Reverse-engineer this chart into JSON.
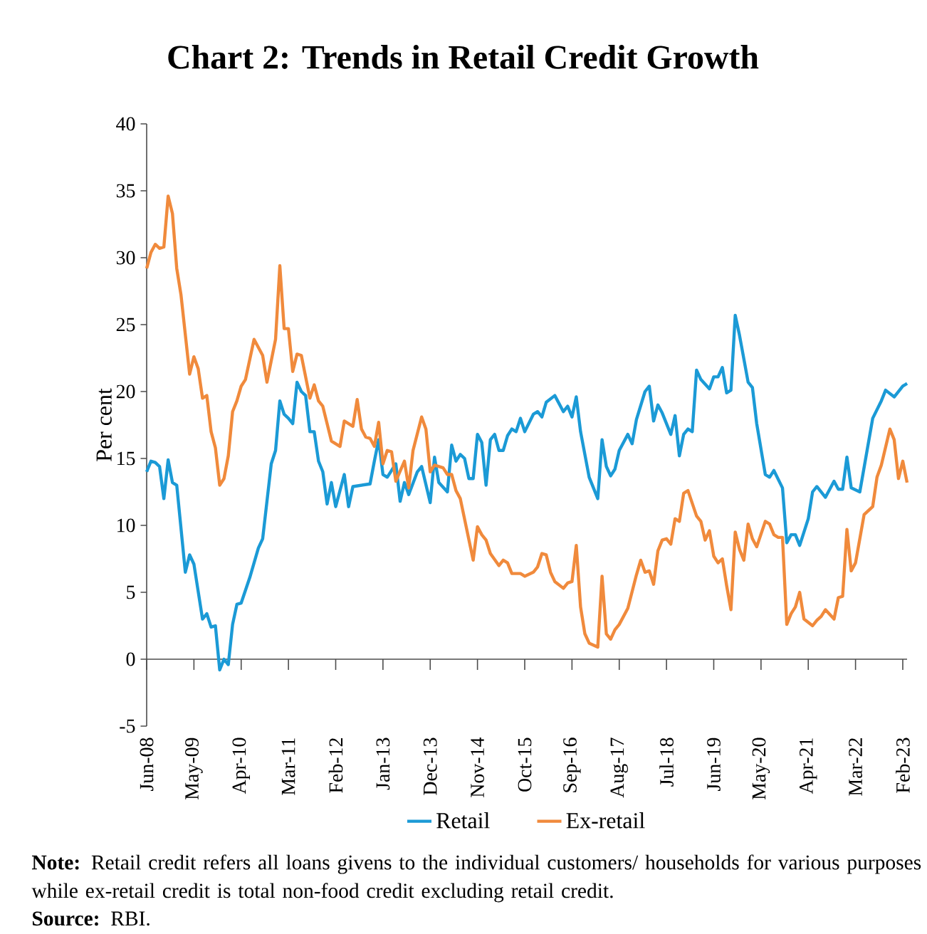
{
  "chart_data": {
    "type": "line",
    "title": "Chart 2: Trends in Retail Credit Growth",
    "ylabel": "Per cent",
    "xlim": [
      "2008-06",
      "2023-03"
    ],
    "xticks": [
      {
        "value": "2008-06",
        "label": "Jun-08"
      },
      {
        "value": "2009-05",
        "label": "May-09"
      },
      {
        "value": "2010-04",
        "label": "Apr-10"
      },
      {
        "value": "2011-03",
        "label": "Mar-11"
      },
      {
        "value": "2012-02",
        "label": "Feb-12"
      },
      {
        "value": "2013-01",
        "label": "Jan-13"
      },
      {
        "value": "2013-12",
        "label": "Dec-13"
      },
      {
        "value": "2014-11",
        "label": "Nov-14"
      },
      {
        "value": "2015-10",
        "label": "Oct-15"
      },
      {
        "value": "2016-09",
        "label": "Sep-16"
      },
      {
        "value": "2017-08",
        "label": "Aug-17"
      },
      {
        "value": "2018-07",
        "label": "Jul-18"
      },
      {
        "value": "2019-06",
        "label": "Jun-19"
      },
      {
        "value": "2020-05",
        "label": "May-20"
      },
      {
        "value": "2021-04",
        "label": "Apr-21"
      },
      {
        "value": "2022-03",
        "label": "Mar-22"
      },
      {
        "value": "2023-02",
        "label": "Feb-23"
      }
    ],
    "ylim": [
      -5,
      40
    ],
    "yticks": [
      -5,
      0,
      5,
      10,
      15,
      20,
      25,
      30,
      35,
      40
    ],
    "legend": "bottom",
    "series": [
      {
        "name": "Retail",
        "color": "#1b9ad6",
        "x": [
          "2008-06",
          "2008-07",
          "2008-08",
          "2008-09",
          "2008-10",
          "2008-11",
          "2008-12",
          "2009-01",
          "2009-03",
          "2009-04",
          "2009-05",
          "2009-07",
          "2009-08",
          "2009-09",
          "2009-10",
          "2009-11",
          "2009-12",
          "2010-01",
          "2010-02",
          "2010-03",
          "2010-04",
          "2010-06",
          "2010-08",
          "2010-09",
          "2010-11",
          "2010-12",
          "2011-01",
          "2011-02",
          "2011-03",
          "2011-04",
          "2011-05",
          "2011-06",
          "2011-07",
          "2011-08",
          "2011-09",
          "2011-10",
          "2011-11",
          "2011-12",
          "2012-01",
          "2012-02",
          "2012-04",
          "2012-05",
          "2012-06",
          "2012-10",
          "2012-11",
          "2012-12",
          "2013-01",
          "2013-02",
          "2013-04",
          "2013-05",
          "2013-06",
          "2013-07",
          "2013-09",
          "2013-10",
          "2013-12",
          "2014-01",
          "2014-02",
          "2014-04",
          "2014-05",
          "2014-06",
          "2014-07",
          "2014-08",
          "2014-09",
          "2014-10",
          "2014-11",
          "2014-12",
          "2015-01",
          "2015-02",
          "2015-03",
          "2015-04",
          "2015-05",
          "2015-06",
          "2015-07",
          "2015-08",
          "2015-09",
          "2015-10",
          "2015-12",
          "2016-01",
          "2016-02",
          "2016-03",
          "2016-05",
          "2016-07",
          "2016-08",
          "2016-09",
          "2016-10",
          "2016-11",
          "2017-01",
          "2017-03",
          "2017-04",
          "2017-05",
          "2017-06",
          "2017-07",
          "2017-08",
          "2017-10",
          "2017-11",
          "2017-12",
          "2018-02",
          "2018-03",
          "2018-04",
          "2018-05",
          "2018-06",
          "2018-08",
          "2018-09",
          "2018-10",
          "2018-11",
          "2018-12",
          "2019-01",
          "2019-02",
          "2019-03",
          "2019-05",
          "2019-06",
          "2019-07",
          "2019-08",
          "2019-09",
          "2019-10",
          "2019-11",
          "2019-12",
          "2020-02",
          "2020-03",
          "2020-04",
          "2020-06",
          "2020-07",
          "2020-08",
          "2020-10",
          "2020-11",
          "2020-12",
          "2021-01",
          "2021-02",
          "2021-04",
          "2021-05",
          "2021-06",
          "2021-08",
          "2021-10",
          "2021-11",
          "2021-12",
          "2022-01",
          "2022-02",
          "2022-04",
          "2022-07",
          "2022-09",
          "2022-10",
          "2022-12",
          "2023-02",
          "2023-03"
        ],
        "values": [
          14.0,
          14.8,
          14.7,
          14.4,
          12.0,
          14.9,
          13.2,
          13.0,
          6.5,
          7.8,
          7.1,
          3.0,
          3.4,
          2.4,
          2.5,
          -0.8,
          0,
          -0.4,
          2.6,
          4.1,
          4.2,
          6.1,
          8.3,
          9.0,
          14.6,
          15.6,
          19.3,
          18.3,
          18.0,
          17.6,
          20.7,
          20.0,
          19.7,
          17.0,
          17.0,
          14.8,
          14.0,
          11.6,
          13.2,
          11.4,
          13.8,
          11.4,
          12.9,
          13.1,
          14.8,
          16.4,
          13.8,
          13.6,
          14.6,
          11.8,
          13.2,
          12.3,
          14.0,
          14.4,
          11.7,
          15.1,
          13.2,
          12.5,
          16.0,
          14.8,
          15.3,
          15.0,
          13.5,
          13.5,
          16.8,
          16.2,
          13.0,
          16.4,
          16.8,
          15.6,
          15.6,
          16.7,
          17.2,
          17.0,
          18.0,
          17.0,
          18.3,
          18.5,
          18.1,
          19.2,
          19.7,
          18.5,
          18.9,
          18.1,
          19.6,
          17.0,
          13.6,
          12.0,
          16.4,
          14.4,
          13.7,
          14.2,
          15.6,
          16.8,
          16.1,
          17.9,
          20.0,
          20.4,
          17.8,
          19.0,
          18.4,
          16.8,
          18.2,
          15.2,
          16.8,
          17.2,
          17.0,
          21.6,
          20.9,
          20.2,
          21.1,
          21.1,
          21.8,
          19.9,
          20.1,
          25.7,
          24.2,
          20.7,
          20.3,
          17.6,
          13.8,
          13.6,
          14.1,
          12.8,
          8.7,
          9.3,
          9.3,
          8.5,
          10.5,
          12.5,
          12.9,
          12.1,
          13.3,
          12.7,
          12.7,
          15.1,
          12.8,
          12.5,
          18.0,
          19.3,
          20.1,
          19.6,
          20.4,
          20.6
        ]
      },
      {
        "name": "Ex-retail",
        "color": "#f08a3c",
        "x": [
          "2008-06",
          "2008-07",
          "2008-08",
          "2008-09",
          "2008-10",
          "2008-11",
          "2008-12",
          "2009-01",
          "2009-02",
          "2009-04",
          "2009-05",
          "2009-06",
          "2009-07",
          "2009-08",
          "2009-09",
          "2009-10",
          "2009-11",
          "2009-12",
          "2010-01",
          "2010-02",
          "2010-03",
          "2010-04",
          "2010-05",
          "2010-07",
          "2010-09",
          "2010-10",
          "2010-12",
          "2011-01",
          "2011-02",
          "2011-03",
          "2011-04",
          "2011-05",
          "2011-06",
          "2011-08",
          "2011-09",
          "2011-10",
          "2011-11",
          "2012-01",
          "2012-03",
          "2012-04",
          "2012-06",
          "2012-07",
          "2012-08",
          "2012-09",
          "2012-10",
          "2012-11",
          "2012-12",
          "2013-01",
          "2013-02",
          "2013-03",
          "2013-04",
          "2013-06",
          "2013-07",
          "2013-08",
          "2013-10",
          "2013-11",
          "2013-12",
          "2014-01",
          "2014-03",
          "2014-04",
          "2014-05",
          "2014-06",
          "2014-07",
          "2014-10",
          "2014-11",
          "2014-12",
          "2015-01",
          "2015-02",
          "2015-04",
          "2015-05",
          "2015-06",
          "2015-07",
          "2015-09",
          "2015-10",
          "2015-12",
          "2016-01",
          "2016-02",
          "2016-03",
          "2016-04",
          "2016-05",
          "2016-07",
          "2016-08",
          "2016-09",
          "2016-10",
          "2016-11",
          "2016-12",
          "2017-01",
          "2017-03",
          "2017-04",
          "2017-05",
          "2017-06",
          "2017-07",
          "2017-08",
          "2017-10",
          "2017-12",
          "2018-01",
          "2018-02",
          "2018-03",
          "2018-04",
          "2018-05",
          "2018-06",
          "2018-07",
          "2018-08",
          "2018-09",
          "2018-10",
          "2018-11",
          "2018-12",
          "2019-02",
          "2019-03",
          "2019-04",
          "2019-05",
          "2019-06",
          "2019-07",
          "2019-08",
          "2019-09",
          "2019-10",
          "2019-11",
          "2019-12",
          "2020-01",
          "2020-02",
          "2020-03",
          "2020-04",
          "2020-06",
          "2020-07",
          "2020-08",
          "2020-09",
          "2020-10",
          "2020-11",
          "2020-12",
          "2021-01",
          "2021-02",
          "2021-03",
          "2021-05",
          "2021-06",
          "2021-07",
          "2021-08",
          "2021-10",
          "2021-11",
          "2021-12",
          "2022-01",
          "2022-02",
          "2022-03",
          "2022-05",
          "2022-07",
          "2022-08",
          "2022-09",
          "2022-11",
          "2022-12",
          "2023-01",
          "2023-02",
          "2023-03"
        ],
        "values": [
          29.2,
          30.4,
          31.0,
          30.7,
          30.8,
          34.6,
          33.3,
          29.2,
          27.2,
          21.3,
          22.6,
          21.7,
          19.5,
          19.7,
          17.0,
          15.8,
          13.0,
          13.5,
          15.2,
          18.5,
          19.3,
          20.4,
          20.9,
          23.9,
          22.7,
          20.7,
          23.9,
          29.4,
          24.7,
          24.7,
          21.5,
          22.8,
          22.7,
          19.5,
          20.5,
          19.3,
          18.9,
          16.3,
          15.9,
          17.8,
          17.4,
          19.4,
          17.2,
          16.6,
          16.5,
          15.9,
          17.7,
          14.6,
          15.6,
          15.5,
          13.3,
          14.8,
          12.8,
          15.6,
          18.1,
          17.2,
          14.0,
          14.5,
          14.3,
          13.8,
          13.8,
          12.6,
          12.0,
          7.4,
          9.9,
          9.3,
          8.9,
          7.9,
          7.0,
          7.4,
          7.2,
          6.4,
          6.4,
          6.2,
          6.5,
          6.9,
          7.9,
          7.8,
          6.5,
          5.8,
          5.3,
          5.7,
          5.8,
          8.5,
          3.9,
          1.9,
          1.2,
          0.9,
          6.2,
          1.9,
          1.5,
          2.2,
          2.6,
          3.8,
          6.3,
          7.4,
          6.5,
          6.6,
          5.6,
          8.1,
          8.9,
          9.0,
          8.6,
          10.5,
          10.3,
          12.4,
          12.6,
          10.7,
          10.3,
          8.9,
          9.6,
          7.7,
          7.2,
          7.5,
          5.5,
          3.7,
          9.5,
          8.2,
          7.4,
          10.1,
          9.0,
          8.4,
          10.3,
          10.1,
          9.3,
          9.1,
          9.1,
          2.6,
          3.4,
          3.9,
          5.0,
          3.0,
          2.5,
          2.9,
          3.2,
          3.7,
          3.0,
          4.6,
          4.7,
          9.7,
          6.6,
          7.2,
          10.8,
          11.4,
          13.6,
          14.5,
          17.2,
          16.4,
          13.5,
          14.8,
          13.2
        ]
      }
    ],
    "annotations": [
      "**Note:** Retail credit refers all loans givens to the individual customers/ households for various purposes while ex-retail credit is total non-food credit excluding retail credit.",
      "**Source:** RBI."
    ]
  }
}
